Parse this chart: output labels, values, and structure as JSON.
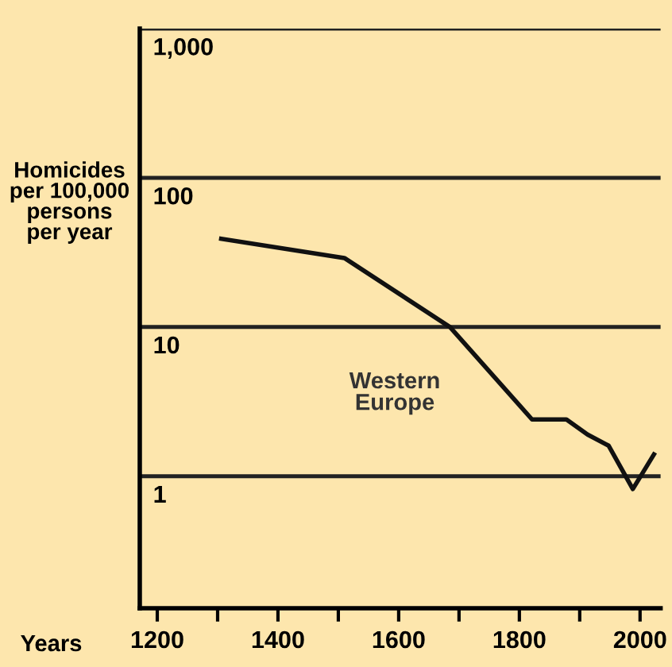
{
  "chart_data": {
    "type": "line",
    "xlabel": "Years",
    "ylabel": "Homicides\nper 100,000\npersons\nper year",
    "x": [
      1306,
      1510,
      1685,
      1821,
      1878,
      1913,
      1948,
      1988,
      2023
    ],
    "series": [
      {
        "name": "Western\nEurope",
        "color": "#111111",
        "values": [
          39,
          29,
          10,
          2.4,
          2.4,
          1.9,
          1.6,
          0.82,
          1.4
        ]
      }
    ],
    "log": true,
    "xlim": [
      1171,
      2034
    ],
    "ylim": [
      0.13,
      1000
    ],
    "xticks": [
      1200,
      {
        "value": 1300,
        "label": null
      },
      1400,
      {
        "value": 1500,
        "label": null
      },
      1600,
      {
        "value": 1700,
        "label": null
      },
      1800,
      {
        "value": 1900,
        "label": null
      },
      2000
    ],
    "yticks": [
      1,
      10,
      100,
      {
        "value": 1000,
        "label": "1,000"
      }
    ],
    "grid": "y",
    "marker": "none",
    "line_style": "solid"
  }
}
